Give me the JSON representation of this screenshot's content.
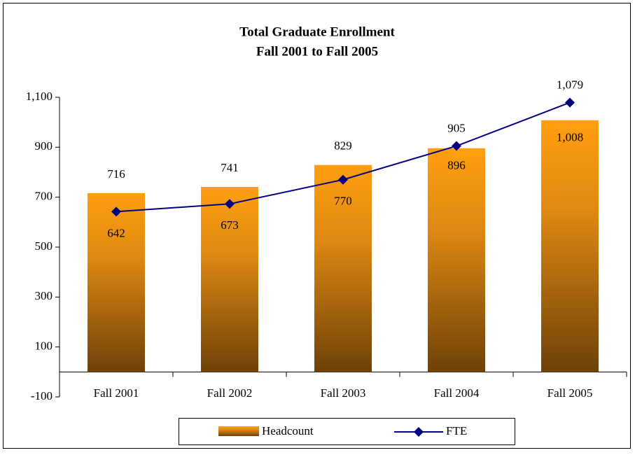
{
  "chart_data": {
    "type": "bar",
    "title": "Total Graduate Enrollment",
    "subtitle": "Fall 2001 to Fall 2005",
    "categories": [
      "Fall 2001",
      "Fall 2002",
      "Fall 2003",
      "Fall 2004",
      "Fall 2005"
    ],
    "series": [
      {
        "name": "Headcount",
        "type": "bar",
        "color": "#f39a10",
        "values": [
          716,
          741,
          829,
          896,
          1008
        ],
        "value_labels": [
          "716",
          "741",
          "829",
          "896",
          "1,008"
        ]
      },
      {
        "name": "FTE",
        "type": "line",
        "color": "#000080",
        "values": [
          642,
          673,
          770,
          905,
          1079
        ],
        "value_labels": [
          "642",
          "673",
          "770",
          "905",
          "1,079"
        ]
      }
    ],
    "ylim": [
      -100,
      1100
    ],
    "yticks": [
      -100,
      100,
      300,
      500,
      700,
      900,
      {
        "value": 1100,
        "label": "1,100"
      }
    ],
    "legend": "bottom"
  }
}
